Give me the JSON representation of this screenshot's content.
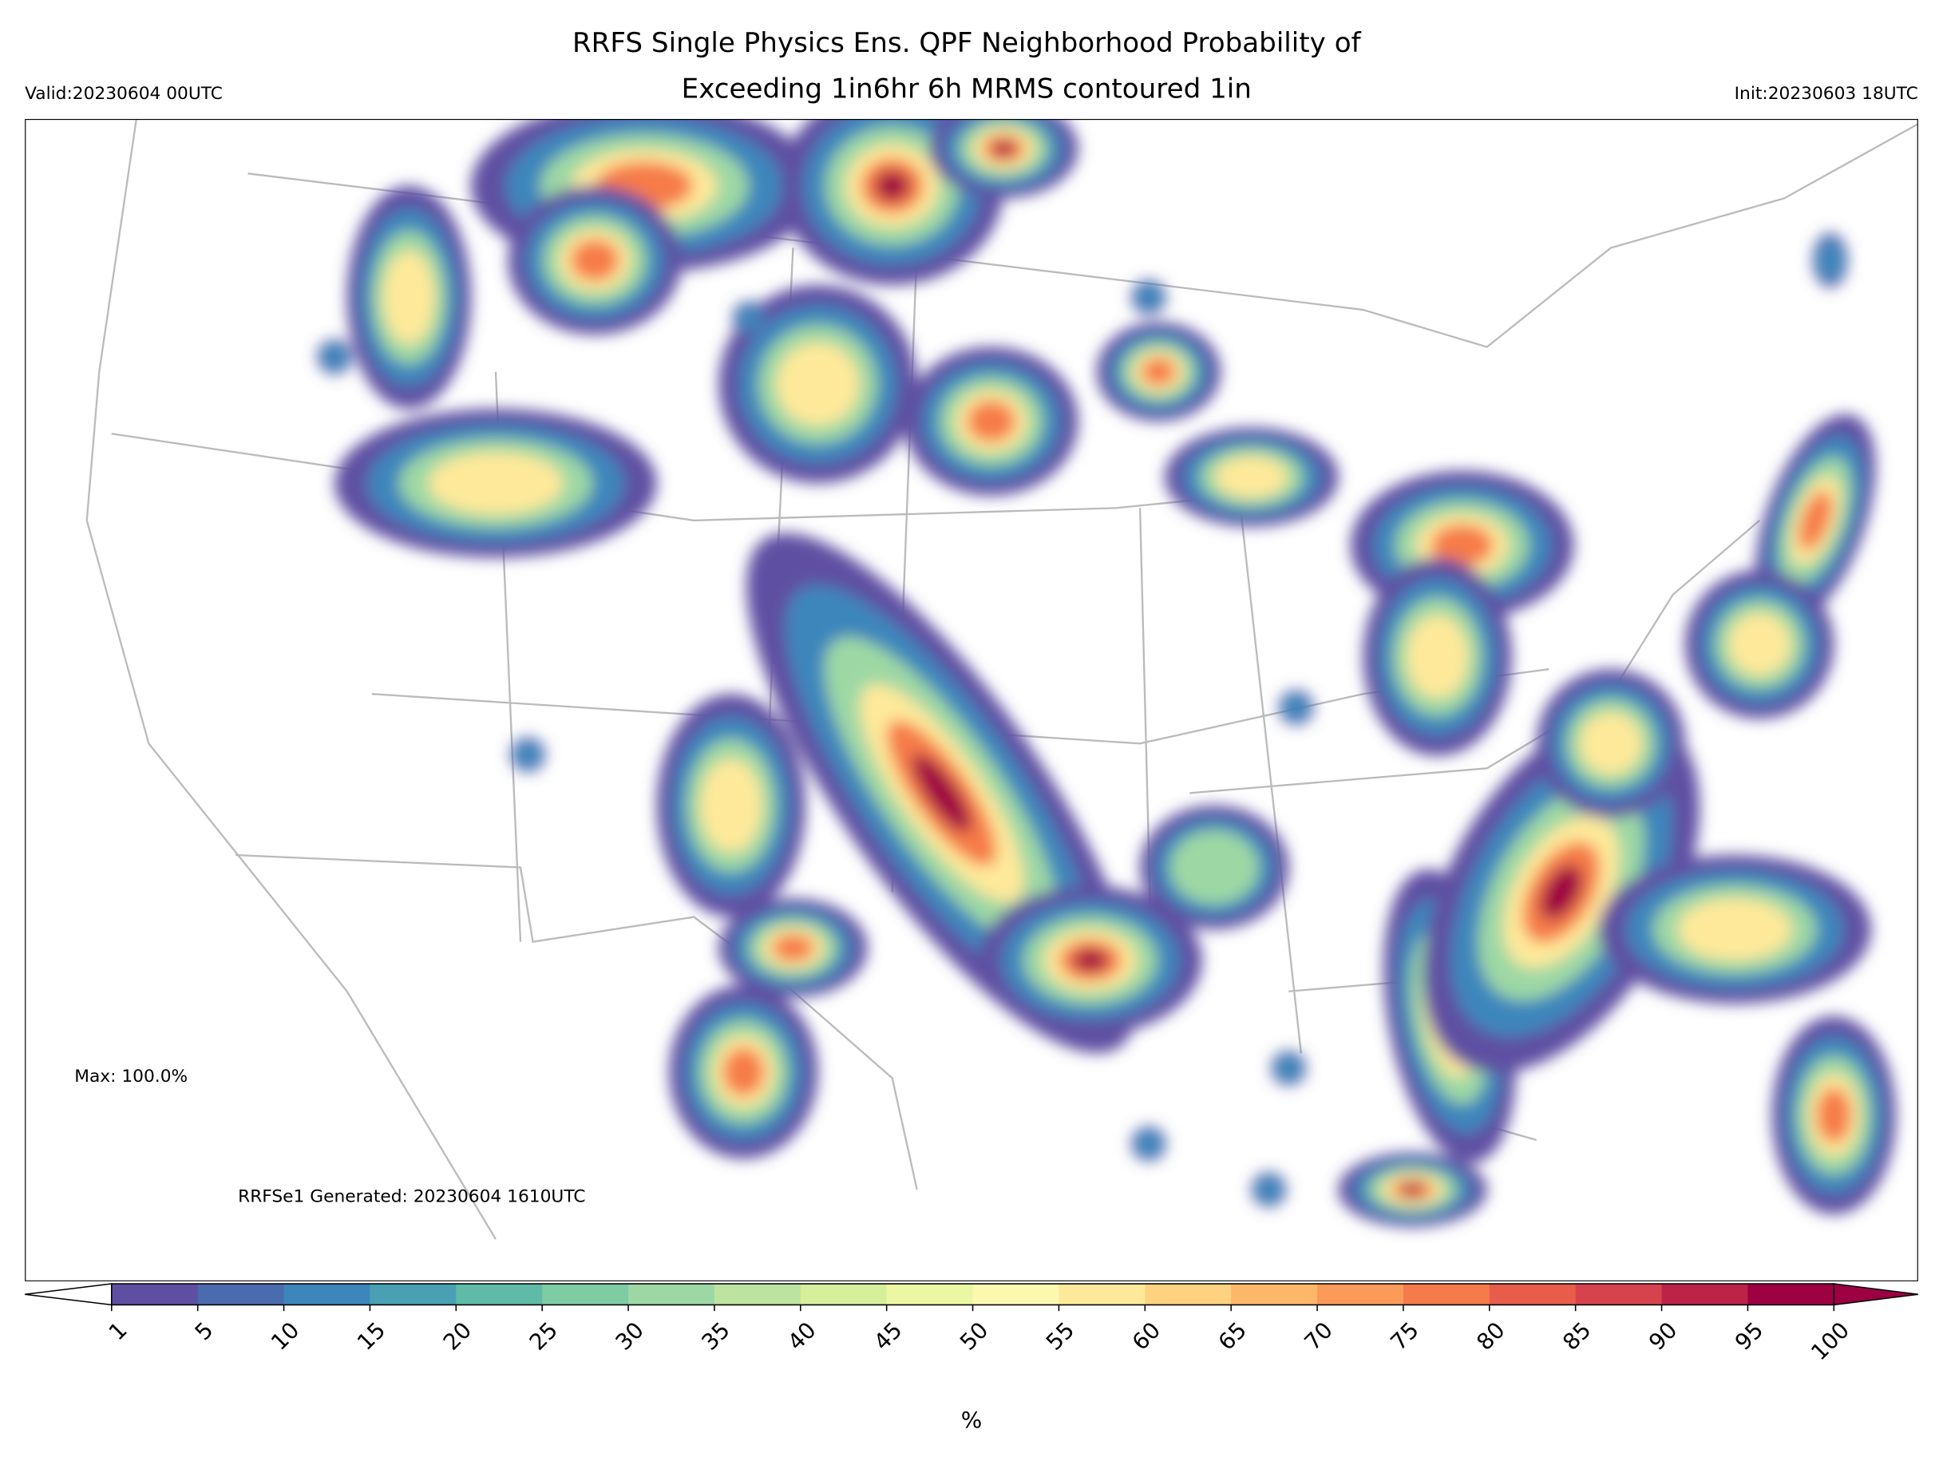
{
  "header": {
    "title": [
      "RRFS Single Physics Ens. QPF Neighborhood Probability of",
      "Exceeding 1in6hr 6h MRMS contoured 1in"
    ],
    "valid": "Valid:20230604 00UTC",
    "init": "Init:20230603 18UTC"
  },
  "map": {
    "max_label": "Max: 100.0%",
    "generated": "RRFSe1 Generated: 20230604 1610UTC"
  },
  "colorbar": {
    "ticks": [
      1,
      5,
      10,
      15,
      20,
      25,
      30,
      35,
      40,
      45,
      50,
      55,
      60,
      65,
      70,
      75,
      80,
      85,
      90,
      95,
      100
    ],
    "colors": [
      "#5e4fa2",
      "#4a6cae",
      "#3c86bc",
      "#4aa0b3",
      "#5fbaa8",
      "#7ecba4",
      "#9dd8a4",
      "#bce4a0",
      "#d6ef9a",
      "#ecf7a3",
      "#fbf8b0",
      "#fee99a",
      "#fed281",
      "#fdb768",
      "#fb9a59",
      "#f67b4a",
      "#e85d4a",
      "#d7434d",
      "#bd2349",
      "#9e0142"
    ],
    "label": "%"
  }
}
